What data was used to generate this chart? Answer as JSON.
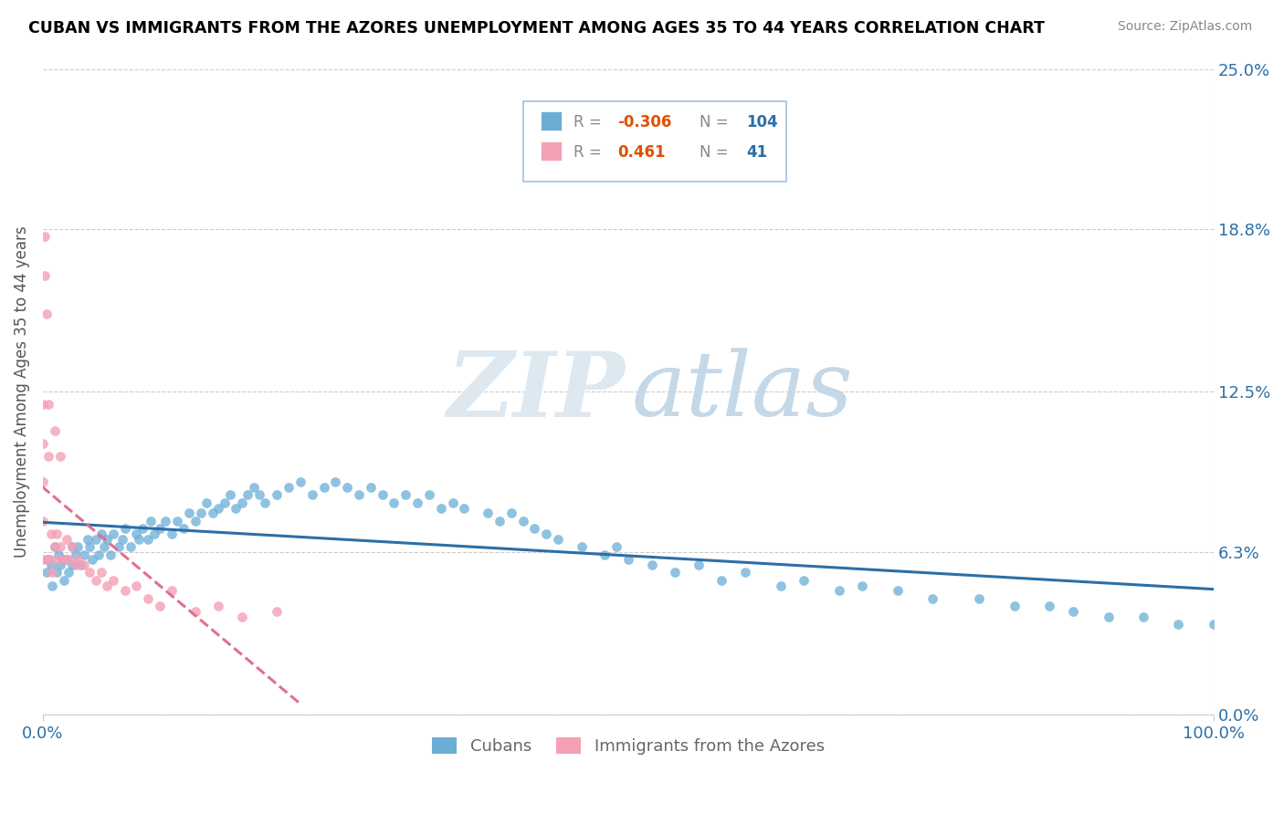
{
  "title": "CUBAN VS IMMIGRANTS FROM THE AZORES UNEMPLOYMENT AMONG AGES 35 TO 44 YEARS CORRELATION CHART",
  "source": "Source: ZipAtlas.com",
  "ylabel": "Unemployment Among Ages 35 to 44 years",
  "xlim": [
    0.0,
    1.0
  ],
  "ylim": [
    0.0,
    0.25
  ],
  "ytick_vals": [
    0.0,
    0.063,
    0.125,
    0.188,
    0.25
  ],
  "ytick_labels": [
    "0.0%",
    "6.3%",
    "12.5%",
    "18.8%",
    "25.0%"
  ],
  "xtick_vals": [
    0.0,
    1.0
  ],
  "xtick_labels": [
    "0.0%",
    "100.0%"
  ],
  "cubans_R": -0.306,
  "cubans_N": 104,
  "azores_R": 0.461,
  "azores_N": 41,
  "blue_color": "#6aaed6",
  "pink_color": "#f4a0b5",
  "blue_line_color": "#2b6fa8",
  "pink_line_color": "#e07090",
  "legend_entries": [
    "Cubans",
    "Immigrants from the Azores"
  ],
  "R_label_color": "#e05000",
  "N_label_color": "#2b6fa8",
  "gray_text": "#888888",
  "cubans_x": [
    0.005,
    0.008,
    0.01,
    0.012,
    0.015,
    0.018,
    0.02,
    0.022,
    0.025,
    0.025,
    0.028,
    0.03,
    0.032,
    0.035,
    0.038,
    0.04,
    0.042,
    0.045,
    0.048,
    0.05,
    0.052,
    0.055,
    0.058,
    0.06,
    0.065,
    0.068,
    0.07,
    0.075,
    0.08,
    0.082,
    0.085,
    0.09,
    0.092,
    0.095,
    0.1,
    0.105,
    0.11,
    0.115,
    0.12,
    0.125,
    0.13,
    0.135,
    0.14,
    0.145,
    0.15,
    0.155,
    0.16,
    0.165,
    0.17,
    0.175,
    0.18,
    0.185,
    0.19,
    0.2,
    0.21,
    0.22,
    0.23,
    0.24,
    0.25,
    0.26,
    0.27,
    0.28,
    0.29,
    0.3,
    0.31,
    0.32,
    0.33,
    0.34,
    0.35,
    0.36,
    0.38,
    0.39,
    0.4,
    0.41,
    0.42,
    0.43,
    0.44,
    0.46,
    0.48,
    0.49,
    0.5,
    0.52,
    0.54,
    0.56,
    0.58,
    0.6,
    0.63,
    0.65,
    0.68,
    0.7,
    0.73,
    0.76,
    0.8,
    0.83,
    0.86,
    0.88,
    0.91,
    0.94,
    0.97,
    1.0,
    0.003,
    0.007,
    0.013,
    0.017
  ],
  "cubans_y": [
    0.06,
    0.05,
    0.065,
    0.055,
    0.058,
    0.052,
    0.06,
    0.055,
    0.065,
    0.058,
    0.062,
    0.065,
    0.058,
    0.062,
    0.068,
    0.065,
    0.06,
    0.068,
    0.062,
    0.07,
    0.065,
    0.068,
    0.062,
    0.07,
    0.065,
    0.068,
    0.072,
    0.065,
    0.07,
    0.068,
    0.072,
    0.068,
    0.075,
    0.07,
    0.072,
    0.075,
    0.07,
    0.075,
    0.072,
    0.078,
    0.075,
    0.078,
    0.082,
    0.078,
    0.08,
    0.082,
    0.085,
    0.08,
    0.082,
    0.085,
    0.088,
    0.085,
    0.082,
    0.085,
    0.088,
    0.09,
    0.085,
    0.088,
    0.09,
    0.088,
    0.085,
    0.088,
    0.085,
    0.082,
    0.085,
    0.082,
    0.085,
    0.08,
    0.082,
    0.08,
    0.078,
    0.075,
    0.078,
    0.075,
    0.072,
    0.07,
    0.068,
    0.065,
    0.062,
    0.065,
    0.06,
    0.058,
    0.055,
    0.058,
    0.052,
    0.055,
    0.05,
    0.052,
    0.048,
    0.05,
    0.048,
    0.045,
    0.045,
    0.042,
    0.042,
    0.04,
    0.038,
    0.038,
    0.035,
    0.035,
    0.055,
    0.058,
    0.062,
    0.06
  ],
  "azores_x": [
    0.0,
    0.0,
    0.0,
    0.0,
    0.0,
    0.002,
    0.002,
    0.003,
    0.003,
    0.005,
    0.005,
    0.006,
    0.007,
    0.008,
    0.01,
    0.01,
    0.012,
    0.013,
    0.015,
    0.015,
    0.018,
    0.02,
    0.022,
    0.025,
    0.028,
    0.03,
    0.035,
    0.04,
    0.045,
    0.05,
    0.055,
    0.06,
    0.07,
    0.08,
    0.09,
    0.1,
    0.11,
    0.13,
    0.15,
    0.17,
    0.2
  ],
  "azores_y": [
    0.06,
    0.075,
    0.09,
    0.105,
    0.12,
    0.17,
    0.185,
    0.155,
    0.06,
    0.1,
    0.12,
    0.06,
    0.07,
    0.055,
    0.065,
    0.11,
    0.07,
    0.06,
    0.065,
    0.1,
    0.06,
    0.068,
    0.06,
    0.065,
    0.058,
    0.06,
    0.058,
    0.055,
    0.052,
    0.055,
    0.05,
    0.052,
    0.048,
    0.05,
    0.045,
    0.042,
    0.048,
    0.04,
    0.042,
    0.038,
    0.04
  ]
}
